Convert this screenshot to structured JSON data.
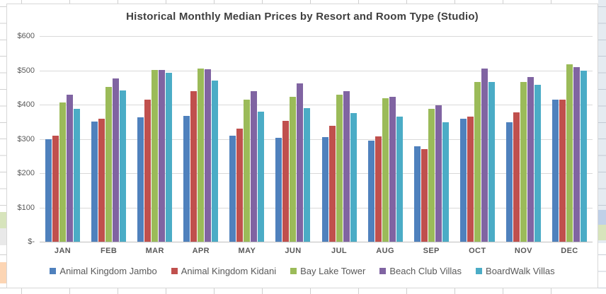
{
  "chart_data": {
    "type": "bar",
    "title": "Historical Monthly Median Prices by Resort and Room Type (Studio)",
    "categories": [
      "JAN",
      "FEB",
      "MAR",
      "APR",
      "MAY",
      "JUN",
      "JUL",
      "AUG",
      "SEP",
      "OCT",
      "NOV",
      "DEC"
    ],
    "series": [
      {
        "name": "Animal Kingdom Jambo",
        "color": "#4F81BD",
        "values": [
          300,
          350,
          363,
          367,
          310,
          304,
          306,
          295,
          278,
          358,
          348,
          414
        ]
      },
      {
        "name": "Animal Kingdom Kidani",
        "color": "#C0504D",
        "values": [
          310,
          359,
          415,
          440,
          329,
          353,
          338,
          307,
          271,
          364,
          377,
          414
        ]
      },
      {
        "name": "Bay Lake Tower",
        "color": "#9BBB59",
        "values": [
          407,
          452,
          502,
          506,
          414,
          423,
          429,
          418,
          388,
          466,
          466,
          517
        ]
      },
      {
        "name": "Beach Club Villas",
        "color": "#8064A2",
        "values": [
          428,
          476,
          501,
          504,
          440,
          462,
          440,
          422,
          398,
          506,
          480,
          509
        ]
      },
      {
        "name": "BoardWalk Villas",
        "color": "#4BACC6",
        "values": [
          388,
          442,
          492,
          470,
          380,
          390,
          375,
          365,
          349,
          466,
          458,
          498
        ]
      }
    ],
    "xlabel": "",
    "ylabel": "",
    "ylim": [
      0,
      600
    ],
    "y_tick_values": [
      600,
      500,
      400,
      300,
      200,
      100,
      0
    ],
    "y_tick_labels": [
      "$600",
      "$500",
      "$400",
      "$300",
      "$200",
      "$100",
      "$-"
    ],
    "grid": true,
    "legend_position": "bottom"
  }
}
